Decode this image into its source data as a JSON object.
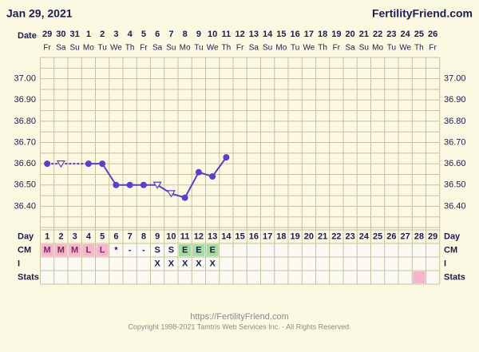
{
  "chart_data": {
    "type": "line",
    "title": "Jan 29, 2021",
    "site": "FertilityFriend.com",
    "date_label": "Date",
    "dates": [
      "29",
      "30",
      "31",
      "1",
      "2",
      "3",
      "4",
      "5",
      "6",
      "7",
      "8",
      "9",
      "10",
      "11",
      "12",
      "13",
      "14",
      "15",
      "16",
      "17",
      "18",
      "19",
      "20",
      "21",
      "22",
      "23",
      "24",
      "25",
      "26"
    ],
    "weekdays": [
      "Fr",
      "Sa",
      "Su",
      "Mo",
      "Tu",
      "We",
      "Th",
      "Fr",
      "Sa",
      "Su",
      "Mo",
      "Tu",
      "We",
      "Th",
      "Fr",
      "Sa",
      "Su",
      "Mo",
      "Tu",
      "We",
      "Th",
      "Fr",
      "Sa",
      "Su",
      "Mo",
      "Tu",
      "We",
      "Th",
      "Fr"
    ],
    "values": [
      36.6,
      36.6,
      null,
      36.6,
      36.6,
      36.5,
      36.5,
      36.5,
      36.5,
      36.46,
      36.44,
      36.56,
      36.54,
      36.63,
      null,
      null,
      null,
      null,
      null,
      null,
      null,
      null,
      null,
      null,
      null,
      null,
      null,
      null,
      null
    ],
    "markers": [
      "filled",
      "open",
      null,
      "filled",
      "filled",
      "filled",
      "filled",
      "filled",
      "open",
      "open",
      "filled",
      "filled",
      "filled",
      "filled",
      null,
      null,
      null,
      null,
      null,
      null,
      null,
      null,
      null,
      null,
      null,
      null,
      null,
      null,
      null
    ],
    "color": "#5b3fc4",
    "ylim": [
      36.3,
      37.1
    ],
    "yticks": [
      {
        "value": 36.4,
        "label": "36.40"
      },
      {
        "value": 36.5,
        "label": "36.50"
      },
      {
        "value": 36.6,
        "label": "36.60"
      },
      {
        "value": 36.7,
        "label": "36.70"
      },
      {
        "value": 36.8,
        "label": "36.80"
      },
      {
        "value": 36.9,
        "label": "36.90"
      },
      {
        "value": 37.0,
        "label": "37.00"
      }
    ],
    "grid": true,
    "day_label": "Day",
    "days": [
      1,
      2,
      3,
      4,
      5,
      6,
      7,
      8,
      9,
      10,
      11,
      12,
      13,
      14,
      15,
      16,
      17,
      18,
      19,
      20,
      21,
      22,
      23,
      24,
      25,
      26,
      27,
      28,
      29
    ],
    "cm_label": "CM",
    "cm": [
      "M",
      "M",
      "M",
      "L",
      "L",
      "*",
      "-",
      "-",
      "S",
      "S",
      "E",
      "E",
      "E",
      null,
      null,
      null,
      null,
      null,
      null,
      null,
      null,
      null,
      null,
      null,
      null,
      null,
      null,
      null,
      null
    ],
    "cm_colors": [
      "#f4b6c8",
      "#f4b6c8",
      "#f4b6c8",
      "#f4b6c8",
      "#f4b6c8",
      null,
      null,
      null,
      null,
      null,
      "#a8dca0",
      "#a8dca0",
      "#a8dca0",
      null,
      null,
      null,
      null,
      null,
      null,
      null,
      null,
      null,
      null,
      null,
      null,
      null,
      null,
      null,
      null
    ],
    "i_label": "I",
    "i": [
      null,
      null,
      null,
      null,
      null,
      null,
      null,
      null,
      "X",
      "X",
      "X",
      "X",
      "X",
      null,
      null,
      null,
      null,
      null,
      null,
      null,
      null,
      null,
      null,
      null,
      null,
      null,
      null,
      null,
      null
    ],
    "stats_label": "Stats",
    "stats_colors": [
      null,
      null,
      null,
      null,
      null,
      null,
      null,
      null,
      null,
      null,
      null,
      null,
      null,
      null,
      null,
      null,
      null,
      null,
      null,
      null,
      null,
      null,
      null,
      null,
      null,
      null,
      null,
      "#f4b6c8",
      null
    ],
    "url": "https://FertilityFriend.com",
    "copyright": "Copyright 1998-2021 Tamtris Web Services Inc. - All Rights Reserved."
  }
}
